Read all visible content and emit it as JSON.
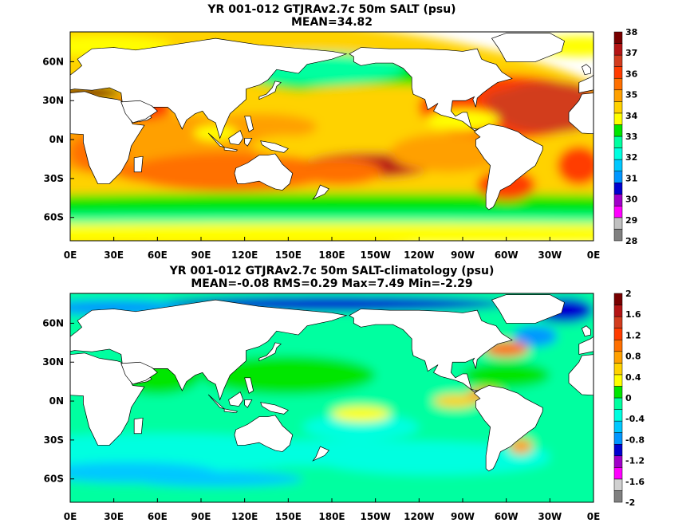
{
  "panels": [
    {
      "title_line1": "YR 001-012 GTJRAv2.7c 50m SALT (psu)",
      "title_line2": "MEAN=34.82",
      "colorbar_labels": [
        "38",
        "37",
        "36",
        "35",
        "34",
        "33",
        "32",
        "31",
        "30",
        "29",
        "28"
      ]
    },
    {
      "title_line1": "YR 001-012 GTJRAv2.7c 50m SALT-climatology (psu)",
      "title_line2": "MEAN=-0.08   RMS=0.29   Max=7.49   Min=-2.29",
      "colorbar_labels": [
        "2",
        "1.6",
        "1.2",
        "0.8",
        "0.4",
        "0",
        "-0.4",
        "-0.8",
        "-1.2",
        "-1.6",
        "-2"
      ]
    }
  ],
  "x_ticks": [
    "0E",
    "30E",
    "60E",
    "90E",
    "120E",
    "150E",
    "180E",
    "150W",
    "120W",
    "90W",
    "60W",
    "30W",
    "0E"
  ],
  "y_ticks": [
    "60N",
    "30N",
    "0N",
    "30S",
    "60S"
  ],
  "colors": {
    "salt_scale": [
      "#808080",
      "#c0c0c0",
      "#ff00ff",
      "#a000c8",
      "#0000d0",
      "#0096ff",
      "#00c8ff",
      "#00ffe0",
      "#00ffa0",
      "#00e600",
      "#ffff00",
      "#ffd200",
      "#ffa000",
      "#ff7000",
      "#ff3c00",
      "#d23c1e",
      "#b41414",
      "#780000"
    ],
    "land": "#ffffff",
    "coast": "#000000"
  }
}
